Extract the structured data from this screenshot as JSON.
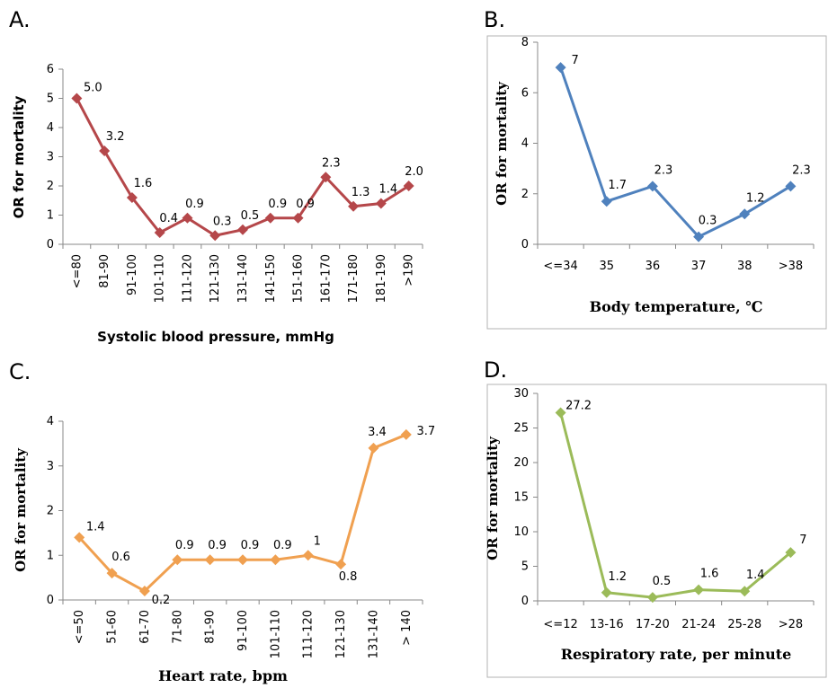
{
  "chart_data": [
    {
      "panel": "A.",
      "type": "line",
      "categories": [
        "<=80",
        "81-90",
        "91-100",
        "101-110",
        "111-120",
        "121-130",
        "131-140",
        "141-150",
        "151-160",
        "161-170",
        "171-180",
        "181-190",
        ">190"
      ],
      "values": [
        5.0,
        3.2,
        1.6,
        0.4,
        0.9,
        0.3,
        0.5,
        0.9,
        0.9,
        2.3,
        1.3,
        1.4,
        2.0
      ],
      "data_labels": [
        "5.0",
        "3.2",
        "1.6",
        "0.4",
        "0.9",
        "0.3",
        "0.5",
        "0.9",
        "0.9",
        "2.3",
        "1.3",
        "1.4",
        "2.0"
      ],
      "ylim": [
        0,
        6
      ],
      "yticks": [
        "0",
        "1",
        "2",
        "3",
        "4",
        "5",
        "6"
      ],
      "xlabel": "Systolic blood pressure, mmHg",
      "ylabel": "OR for mortality",
      "color": "#b5474a",
      "grid": false
    },
    {
      "panel": "B.",
      "type": "line",
      "categories": [
        "<=34",
        "35",
        "36",
        "37",
        "38",
        ">38"
      ],
      "values": [
        7,
        1.7,
        2.3,
        0.3,
        1.2,
        2.3
      ],
      "data_labels": [
        "7",
        "1.7",
        "2.3",
        "0.3",
        "1.2",
        "2.3"
      ],
      "ylim": [
        0,
        8
      ],
      "yticks": [
        "0",
        "2",
        "4",
        "6",
        "8"
      ],
      "xlabel": "Body temperature, ℃",
      "ylabel": "OR for mortality",
      "color": "#4f81bd",
      "grid": false
    },
    {
      "panel": "C.",
      "type": "line",
      "categories": [
        "<=50",
        "51-60",
        "61-70",
        "71-80",
        "81-90",
        "91-100",
        "101-110",
        "111-120",
        "121-130",
        "131-140",
        "> 140"
      ],
      "values": [
        1.4,
        0.6,
        0.2,
        0.9,
        0.9,
        0.9,
        0.9,
        1,
        0.8,
        3.4,
        3.7
      ],
      "data_labels": [
        "1.4",
        "0.6",
        "0.2",
        "0.9",
        "0.9",
        "0.9",
        "0.9",
        "1",
        "0.8",
        "3.4",
        "3.7"
      ],
      "ylim": [
        0,
        4
      ],
      "yticks": [
        "0",
        "1",
        "2",
        "3",
        "4"
      ],
      "xlabel": "Heart rate, bpm",
      "ylabel": "OR for mortality",
      "color": "#f0a050",
      "grid": false
    },
    {
      "panel": "D.",
      "type": "line",
      "categories": [
        "<=12",
        "13-16",
        "17-20",
        "21-24",
        "25-28",
        ">28"
      ],
      "values": [
        27.2,
        1.2,
        0.5,
        1.6,
        1.4,
        7
      ],
      "data_labels": [
        "27.2",
        "1.2",
        "0.5",
        "1.6",
        "1.4",
        "7"
      ],
      "ylim": [
        0,
        30
      ],
      "yticks": [
        "0",
        "5",
        "10",
        "15",
        "20",
        "25",
        "30"
      ],
      "xlabel": "Respiratory rate, per minute",
      "ylabel": "OR for mortality",
      "color": "#9bbb59",
      "grid": false
    }
  ]
}
